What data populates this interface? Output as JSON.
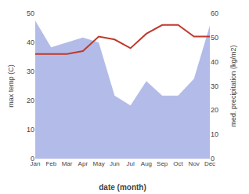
{
  "chart_data": {
    "type": "line",
    "categories": [
      "Jan",
      "Feb",
      "Mar",
      "Apr",
      "May",
      "Jun",
      "Jul",
      "Aug",
      "Sep",
      "Oct",
      "Nov",
      "Dec"
    ],
    "xlabel": "date (month)",
    "ylabel": "max temp (C)",
    "y2label": "med. precipitation (kg/m2)",
    "ylim": [
      0,
      50
    ],
    "yticks": [
      0,
      10,
      20,
      30,
      40,
      50
    ],
    "y2lim": [
      0,
      60
    ],
    "y2ticks": [
      0,
      10,
      20,
      30,
      40,
      50,
      60
    ],
    "grid": false,
    "series": [
      {
        "type": "area",
        "color": "#b3bce8",
        "axis": "y2",
        "values": [
          57,
          46,
          48,
          50,
          48,
          26,
          22,
          32,
          26,
          26,
          33,
          55
        ]
      },
      {
        "type": "line",
        "color": "#c0392b",
        "values": [
          36,
          36,
          36,
          37,
          42,
          41,
          38,
          43,
          46,
          46,
          42,
          42
        ]
      }
    ]
  }
}
